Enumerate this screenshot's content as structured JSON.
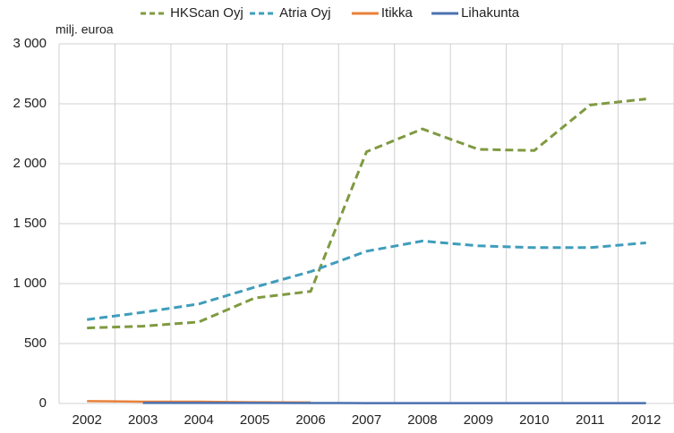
{
  "chart_data": {
    "type": "line",
    "y_unit_label": "milj. euroa",
    "categories": [
      "2002",
      "2003",
      "2004",
      "2005",
      "2006",
      "2007",
      "2008",
      "2009",
      "2010",
      "2011",
      "2012"
    ],
    "series": [
      {
        "name": "HKScan Oyj",
        "color": "#7f9a41",
        "dash": true,
        "values": [
          630,
          645,
          680,
          880,
          935,
          2100,
          2290,
          2120,
          2110,
          2490,
          2540
        ]
      },
      {
        "name": "Atria Oyj",
        "color": "#3f9dbb",
        "dash": true,
        "values": [
          700,
          760,
          830,
          970,
          1100,
          1270,
          1355,
          1315,
          1300,
          1300,
          1340
        ]
      },
      {
        "name": "Itikka",
        "color": "#e8803a",
        "dash": false,
        "values": [
          20,
          15,
          15,
          10,
          8,
          null,
          null,
          null,
          null,
          null,
          null
        ]
      },
      {
        "name": "Lihakunta",
        "color": "#4a72b0",
        "dash": false,
        "values": [
          null,
          5,
          5,
          5,
          4,
          3,
          3,
          3,
          3,
          3,
          3
        ]
      }
    ],
    "ylim": [
      0,
      3000
    ],
    "yticks": [
      0,
      500,
      {
        "value": 1000,
        "label": "1 000"
      },
      {
        "value": 1500,
        "label": "1 500"
      },
      {
        "value": 2000,
        "label": "2 000"
      },
      {
        "value": 2500,
        "label": "2 500"
      },
      {
        "value": 3000,
        "label": "3 000"
      }
    ],
    "grid": true
  }
}
